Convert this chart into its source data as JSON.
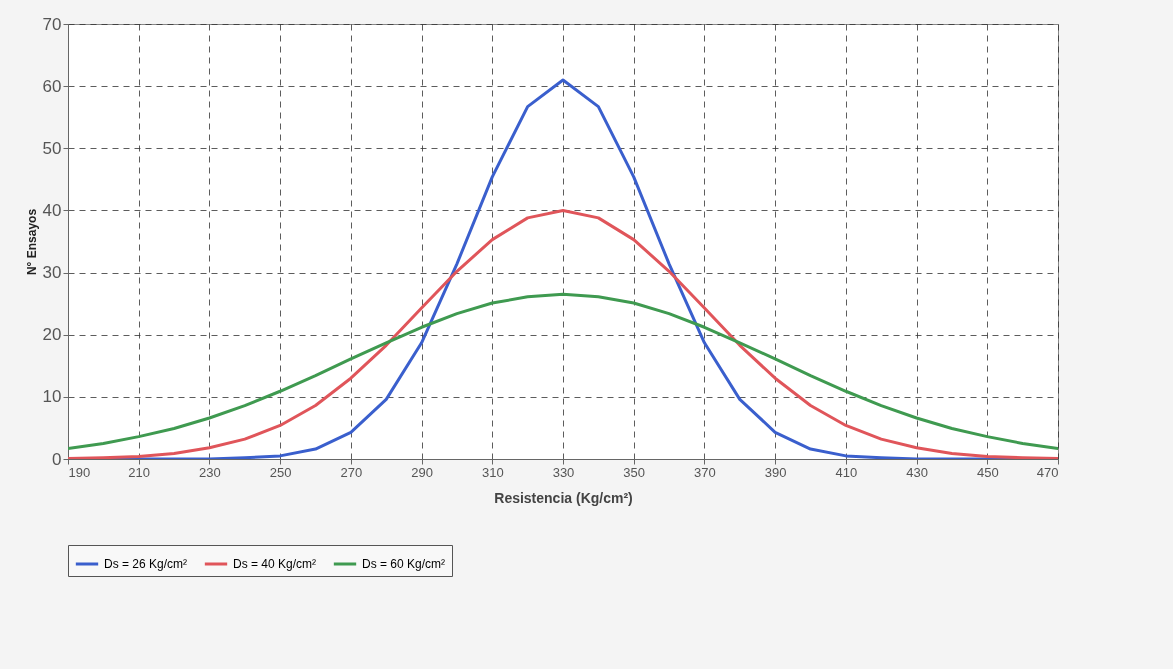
{
  "chart_data": {
    "type": "line",
    "xlabel": "Resistencia (Kg/cm²)",
    "ylabel": "N° Ensayos",
    "x": [
      190,
      200,
      210,
      220,
      230,
      240,
      250,
      260,
      270,
      280,
      290,
      300,
      310,
      320,
      330,
      340,
      350,
      360,
      370,
      380,
      390,
      400,
      410,
      420,
      430,
      440,
      450,
      460,
      470
    ],
    "series": [
      {
        "name": "Ds = 26 Kg/cm²",
        "color": "#3a5fcd",
        "values": [
          0,
          0,
          0,
          0,
          0,
          0.2,
          0.5,
          1.6,
          4.3,
          9.6,
          18.7,
          31.4,
          45.4,
          56.7,
          61,
          56.7,
          45.4,
          31.4,
          18.7,
          9.6,
          4.3,
          1.6,
          0.5,
          0.2,
          0,
          0,
          0,
          0,
          0
        ]
      },
      {
        "name": "Ds = 40 Kg/cm²",
        "color": "#e0555a",
        "values": [
          0.1,
          0.2,
          0.4,
          0.9,
          1.8,
          3.2,
          5.4,
          8.6,
          13,
          18.3,
          24.3,
          30.2,
          35.3,
          38.8,
          40,
          38.8,
          35.3,
          30.2,
          24.3,
          18.3,
          13,
          8.6,
          5.4,
          3.2,
          1.8,
          0.9,
          0.4,
          0.2,
          0.1
        ]
      },
      {
        "name": "Ds = 60 Kg/cm²",
        "color": "#3f9a50",
        "values": [
          1.7,
          2.5,
          3.6,
          4.9,
          6.6,
          8.6,
          10.9,
          13.4,
          16.1,
          18.7,
          21.2,
          23.4,
          25.1,
          26.1,
          26.5,
          26.1,
          25.1,
          23.4,
          21.2,
          18.7,
          16.1,
          13.4,
          10.9,
          8.6,
          6.6,
          4.9,
          3.6,
          2.5,
          1.7
        ]
      }
    ],
    "xlim": [
      190,
      470
    ],
    "ylim": [
      0,
      70
    ],
    "xticks": [
      190,
      210,
      230,
      250,
      270,
      290,
      310,
      330,
      350,
      370,
      390,
      410,
      430,
      450,
      470
    ],
    "yticks": [
      0,
      10,
      20,
      30,
      40,
      50,
      60,
      70
    ],
    "grid": true,
    "legend": "bottom"
  }
}
